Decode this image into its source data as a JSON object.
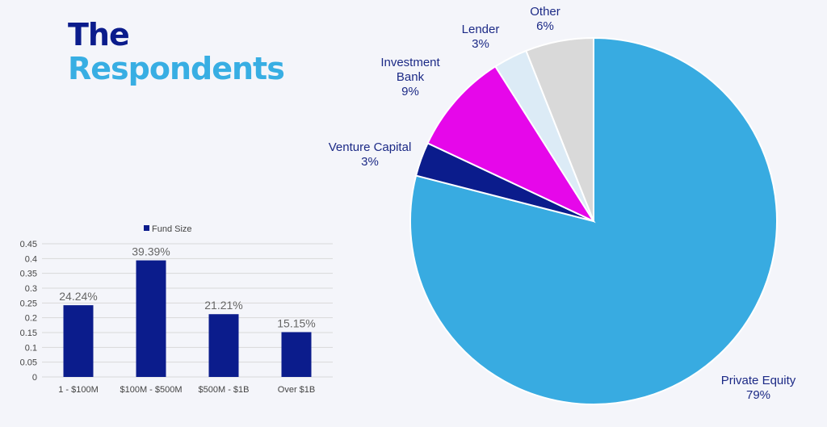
{
  "title": {
    "line1": "The",
    "line2": "Respondents"
  },
  "colors": {
    "title_dark": "#0b1c8c",
    "title_light": "#38aee3",
    "bar": "#0b1c8c",
    "pie": [
      "#38abe1",
      "#0b1c8c",
      "#e607ea",
      "#dcebf6",
      "#d9d9d9"
    ]
  },
  "chart_data": [
    {
      "type": "bar",
      "legend": "Fund Size",
      "legend_position": "top",
      "categories": [
        "1 - $100M",
        "$100M - $500M",
        "$500M - $1B",
        "Over $1B"
      ],
      "values": [
        0.2424,
        0.3939,
        0.2121,
        0.1515
      ],
      "data_labels": [
        "24.24%",
        "39.39%",
        "21.21%",
        "15.15%"
      ],
      "ylim": [
        0,
        0.45
      ],
      "yticks": [
        "0",
        "0.05",
        "0.1",
        "0.15",
        "0.2",
        "0.25",
        "0.3",
        "0.35",
        "0.4",
        "0.45"
      ],
      "grid": true
    },
    {
      "type": "pie",
      "start_angle_deg": 0,
      "direction": "clockwise",
      "slices": [
        {
          "name": "Private Equity",
          "value": 79,
          "label": "79%"
        },
        {
          "name": "Venture Capital",
          "value": 3,
          "label": "3%"
        },
        {
          "name": "Investment Bank",
          "value": 9,
          "label": "9%"
        },
        {
          "name": "Lender",
          "value": 3,
          "label": "3%"
        },
        {
          "name": "Other",
          "value": 6,
          "label": "6%"
        }
      ]
    }
  ]
}
